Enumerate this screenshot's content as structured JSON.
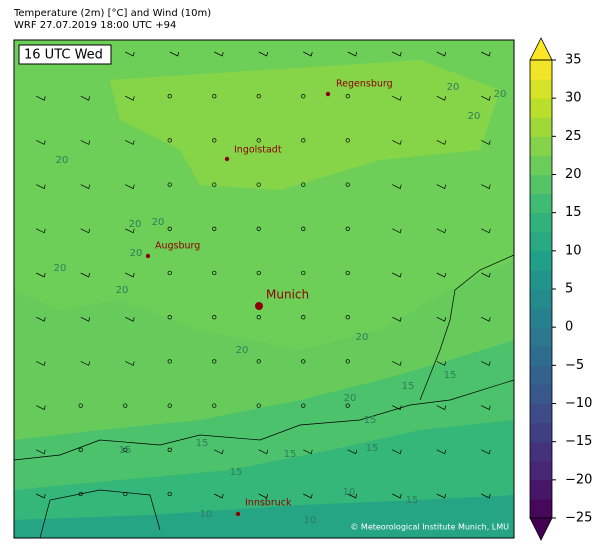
{
  "header": {
    "title": "Temperature (2m) [°C] and Wind (10m)",
    "subtitle": "WRF 27.07.2019 18:00 UTC +94"
  },
  "map": {
    "time_label": "16 UTC Wed",
    "cities": [
      {
        "name": "Regensburg"
      },
      {
        "name": "Ingolstadt"
      },
      {
        "name": "Augsburg"
      },
      {
        "name": "Munich"
      },
      {
        "name": "Innsbruck"
      }
    ],
    "contour_labels": [
      20,
      20,
      20,
      20,
      20,
      20,
      20,
      20,
      20,
      20,
      20,
      20,
      15,
      15,
      15,
      15,
      15,
      15,
      15,
      10,
      10,
      10,
      15,
      15
    ],
    "credit": "© Meteorological Institute Munich, LMU"
  },
  "colorbar": {
    "lim": [
      -25,
      35
    ],
    "step": 2.5,
    "ticks": [
      35,
      30,
      25,
      20,
      15,
      10,
      5,
      0,
      {
        "value": -5,
        "label": "−5"
      },
      {
        "value": -10,
        "label": "−10"
      },
      {
        "value": -15,
        "label": "−15"
      },
      {
        "value": -20,
        "label": "−20"
      },
      {
        "value": -25,
        "label": "−25"
      }
    ],
    "colormap": [
      "#440154",
      "#482878",
      "#3e4989",
      "#31688e",
      "#26828e",
      "#1f9e89",
      "#35b779",
      "#6ece58",
      "#b5de2b",
      "#fde725"
    ]
  }
}
